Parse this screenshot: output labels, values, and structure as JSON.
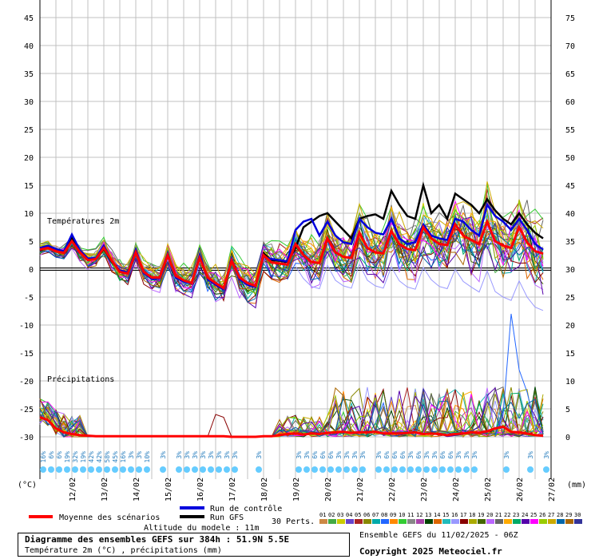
{
  "chart_data": {
    "type": "line",
    "panels": [
      "Températures 2m",
      "Précipitations"
    ],
    "x_dates": [
      "12/02",
      "13/02",
      "14/02",
      "15/02",
      "16/02",
      "17/02",
      "18/02",
      "19/02",
      "20/02",
      "21/02",
      "22/02",
      "23/02",
      "24/02",
      "25/02",
      "26/02",
      "27/02"
    ],
    "left_axis": {
      "ticks": [
        45,
        40,
        35,
        30,
        25,
        20,
        15,
        10,
        5,
        0,
        -5,
        -10,
        -15,
        -20,
        -25,
        -30
      ],
      "unit_label": "(°C)"
    },
    "right_axis": {
      "ticks": [
        75,
        70,
        65,
        60,
        55,
        50,
        45,
        40,
        35,
        30,
        25,
        20,
        15,
        10,
        5,
        0
      ],
      "unit_label": "(mm)"
    },
    "temperature_mean_series": {
      "name": "Moyenne des scénarios",
      "x_days": [
        0,
        0.25,
        0.5,
        0.75,
        1,
        1.25,
        1.5,
        1.75,
        2,
        2.25,
        2.5,
        2.75,
        3,
        3.25,
        3.5,
        3.75,
        4,
        4.25,
        4.5,
        4.75,
        5,
        5.25,
        5.5,
        5.75,
        6,
        6.25,
        6.5,
        6.75,
        7,
        7.25,
        7.5,
        7.75,
        8,
        8.25,
        8.5,
        8.75,
        9,
        9.25,
        9.5,
        9.75,
        10,
        10.25,
        10.5,
        10.75,
        11,
        11.25,
        11.5,
        11.75,
        12,
        12.25,
        12.5,
        12.75,
        13,
        13.25,
        13.5,
        13.75,
        14,
        14.25,
        14.5,
        14.75,
        15,
        15.25,
        15.5,
        15.75
      ],
      "values": [
        3.5,
        3.8,
        3.2,
        2.9,
        5,
        3,
        1.6,
        1.8,
        3.8,
        1.5,
        -0.5,
        -0.8,
        3,
        -0.5,
        -1.5,
        -1.5,
        2.5,
        -1.2,
        -2,
        -2.5,
        2,
        -1.5,
        -2.5,
        -3.4,
        1.5,
        -1.5,
        -2.5,
        -3,
        2.5,
        1.2,
        1,
        0.8,
        4.5,
        2.5,
        1.3,
        1.1,
        5.5,
        3,
        2.2,
        2,
        6.5,
        3.8,
        3,
        2.8,
        6.8,
        4.5,
        3.6,
        3.4,
        7.5,
        5.5,
        4.5,
        4.3,
        8,
        6,
        5.2,
        4.5,
        8.5,
        5,
        4.2,
        3.8,
        7.5,
        4.8,
        3.2,
        2.8
      ]
    },
    "temperature_control_series": {
      "name": "Run de contrôle",
      "values": [
        3.8,
        4.2,
        3.6,
        3.2,
        6.2,
        3.4,
        1.9,
        2,
        4.2,
        1.4,
        -0.2,
        -0.6,
        3.5,
        -0.7,
        -1.8,
        -1.6,
        2.8,
        -1.5,
        -2.2,
        -2.6,
        2.5,
        -1.8,
        -2.8,
        -3.6,
        1.8,
        -1.8,
        -2.8,
        -3.2,
        2.2,
        1.8,
        1.6,
        1.4,
        7,
        8.5,
        9,
        6,
        8.5,
        6,
        4.8,
        4.5,
        9,
        7.5,
        6.5,
        6.2,
        9,
        5.5,
        4.5,
        4.8,
        8,
        6,
        5.5,
        5.2,
        9,
        8.5,
        7,
        6,
        11.5,
        9.5,
        8.5,
        7,
        9,
        7,
        4.5,
        3.5
      ]
    },
    "temperature_gfs_series": {
      "name": "Run GFS",
      "values": [
        3.3,
        3.9,
        3.4,
        3.1,
        5.6,
        3.1,
        1.7,
        1.9,
        3.6,
        1.3,
        -0.4,
        -0.7,
        3.2,
        -0.6,
        -1.6,
        -1.4,
        2.6,
        -1.3,
        -2.1,
        -2.4,
        2.2,
        -1.6,
        -2.6,
        -3.5,
        1.6,
        -1.6,
        -2.6,
        -3.1,
        2.8,
        1.6,
        1.5,
        1.3,
        3.8,
        7.5,
        8.5,
        9.5,
        10,
        8.5,
        7,
        5.5,
        9,
        9.5,
        9.8,
        9,
        14,
        11.5,
        9.5,
        9,
        15,
        10,
        11.5,
        9,
        13.5,
        12.5,
        11.5,
        10,
        12.5,
        10.5,
        9,
        8,
        10,
        8,
        6.5,
        5.5
      ]
    },
    "precip_mean_series": {
      "name": "Moyenne des scénarios",
      "values": [
        3.5,
        3,
        1.5,
        0.8,
        0.5,
        0.3,
        0.2,
        0.1,
        0.1,
        0.1,
        0.1,
        0.1,
        0.1,
        0.1,
        0.1,
        0.1,
        0.1,
        0.1,
        0.1,
        0.1,
        0.1,
        0.1,
        0.1,
        0.1,
        0,
        0,
        0,
        0,
        0.1,
        0.1,
        0.3,
        0.5,
        0.6,
        0.4,
        0.6,
        0.5,
        0.7,
        0.8,
        0.9,
        0.7,
        0.8,
        0.8,
        0.9,
        0.6,
        0.6,
        0.6,
        0.7,
        0.8,
        0.5,
        0.6,
        0.5,
        0.3,
        0.5,
        0.6,
        0.8,
        0.7,
        1,
        1.5,
        1.8,
        0.9,
        0.8,
        0.6,
        0.3,
        0.2
      ]
    },
    "snow_chance_markers": [
      {
        "x_day": 0.1,
        "pct": "16%"
      },
      {
        "x_day": 0.35,
        "pct": "6%"
      },
      {
        "x_day": 0.6,
        "pct": "6%"
      },
      {
        "x_day": 0.85,
        "pct": "19%"
      },
      {
        "x_day": 1.1,
        "pct": "32%"
      },
      {
        "x_day": 1.35,
        "pct": "19%"
      },
      {
        "x_day": 1.6,
        "pct": "42%"
      },
      {
        "x_day": 1.85,
        "pct": "42%"
      },
      {
        "x_day": 2.1,
        "pct": "58%"
      },
      {
        "x_day": 2.35,
        "pct": "45%"
      },
      {
        "x_day": 2.6,
        "pct": "16%"
      },
      {
        "x_day": 2.85,
        "pct": "3%"
      },
      {
        "x_day": 3.1,
        "pct": "3%"
      },
      {
        "x_day": 3.35,
        "pct": "10%"
      },
      {
        "x_day": 3.85,
        "pct": "3%"
      },
      {
        "x_day": 4.35,
        "pct": "3%"
      },
      {
        "x_day": 4.6,
        "pct": "3%"
      },
      {
        "x_day": 4.85,
        "pct": "3%"
      },
      {
        "x_day": 5.1,
        "pct": "3%"
      },
      {
        "x_day": 5.35,
        "pct": "3%"
      },
      {
        "x_day": 5.6,
        "pct": "3%"
      },
      {
        "x_day": 5.85,
        "pct": "3%"
      },
      {
        "x_day": 6.1,
        "pct": "3%"
      },
      {
        "x_day": 6.85,
        "pct": "3%"
      },
      {
        "x_day": 8.1,
        "pct": "3%"
      },
      {
        "x_day": 8.35,
        "pct": "3%"
      },
      {
        "x_day": 8.6,
        "pct": "6%"
      },
      {
        "x_day": 8.85,
        "pct": "6%"
      },
      {
        "x_day": 9.1,
        "pct": "6%"
      },
      {
        "x_day": 9.35,
        "pct": "3%"
      },
      {
        "x_day": 9.6,
        "pct": "3%"
      },
      {
        "x_day": 9.85,
        "pct": "3%"
      },
      {
        "x_day": 10.1,
        "pct": "3%"
      },
      {
        "x_day": 10.6,
        "pct": "3%"
      },
      {
        "x_day": 10.85,
        "pct": "6%"
      },
      {
        "x_day": 11.1,
        "pct": "6%"
      },
      {
        "x_day": 11.35,
        "pct": "6%"
      },
      {
        "x_day": 11.6,
        "pct": "3%"
      },
      {
        "x_day": 11.85,
        "pct": "6%"
      },
      {
        "x_day": 12.1,
        "pct": "3%"
      },
      {
        "x_day": 12.35,
        "pct": "3%"
      },
      {
        "x_day": 12.6,
        "pct": "6%"
      },
      {
        "x_day": 12.85,
        "pct": "6%"
      },
      {
        "x_day": 13.1,
        "pct": "3%"
      },
      {
        "x_day": 13.35,
        "pct": "3%"
      },
      {
        "x_day": 13.6,
        "pct": "3%"
      },
      {
        "x_day": 14.6,
        "pct": "3%"
      },
      {
        "x_day": 15.35,
        "pct": "3%"
      },
      {
        "x_day": 15.85,
        "pct": "3%"
      }
    ],
    "colors": {
      "mean": "#ff0000",
      "control": "#0000dd",
      "gfs": "#000000",
      "grid": "#c0c0c0",
      "snow": "#66ccff",
      "members": [
        "#cc8844",
        "#44aa44",
        "#cccc00",
        "#6644cc",
        "#aa2222",
        "#888800",
        "#00aaaa",
        "#2266ff",
        "#ff8800",
        "#33cc33",
        "#888888",
        "#aa44aa",
        "#004400",
        "#dd6600",
        "#22bbbb",
        "#9999ff",
        "#880000",
        "#aaaa00",
        "#446600",
        "#bb66ff",
        "#666666",
        "#ffaa00",
        "#00aa66",
        "#5500aa",
        "#ff00ff",
        "#99cc00",
        "#ccaa00",
        "#0066aa",
        "#aa6600",
        "#333399"
      ]
    }
  },
  "labels": {
    "temp_panel": "Températures 2m",
    "precip_panel": "Précipitations",
    "left_unit": "(°C)",
    "right_unit": "(mm)",
    "legend_mean": "Moyenne des scénarios",
    "legend_control": "Run de contrôle",
    "legend_gfs": "Run GFS",
    "perts": "30 Perts.",
    "pert_numbers": [
      "01",
      "02",
      "03",
      "04",
      "05",
      "06",
      "07",
      "08",
      "09",
      "10",
      "11",
      "12",
      "13",
      "14",
      "15",
      "16",
      "17",
      "18",
      "19",
      "20",
      "21",
      "22",
      "23",
      "24",
      "25",
      "26",
      "27",
      "28",
      "29",
      "30"
    ],
    "altitude": "Altitude du modele : 11m"
  },
  "footer": {
    "title": "Diagramme des ensembles GEFS sur 384h : 51.9N 5.5E",
    "subtitle": "Température 2m (°C) , précipitations (mm)",
    "ensemble_date": "Ensemble GEFS du 11/02/2025 - 06Z",
    "copyright": "Copyright 2025 Meteociel.fr"
  }
}
